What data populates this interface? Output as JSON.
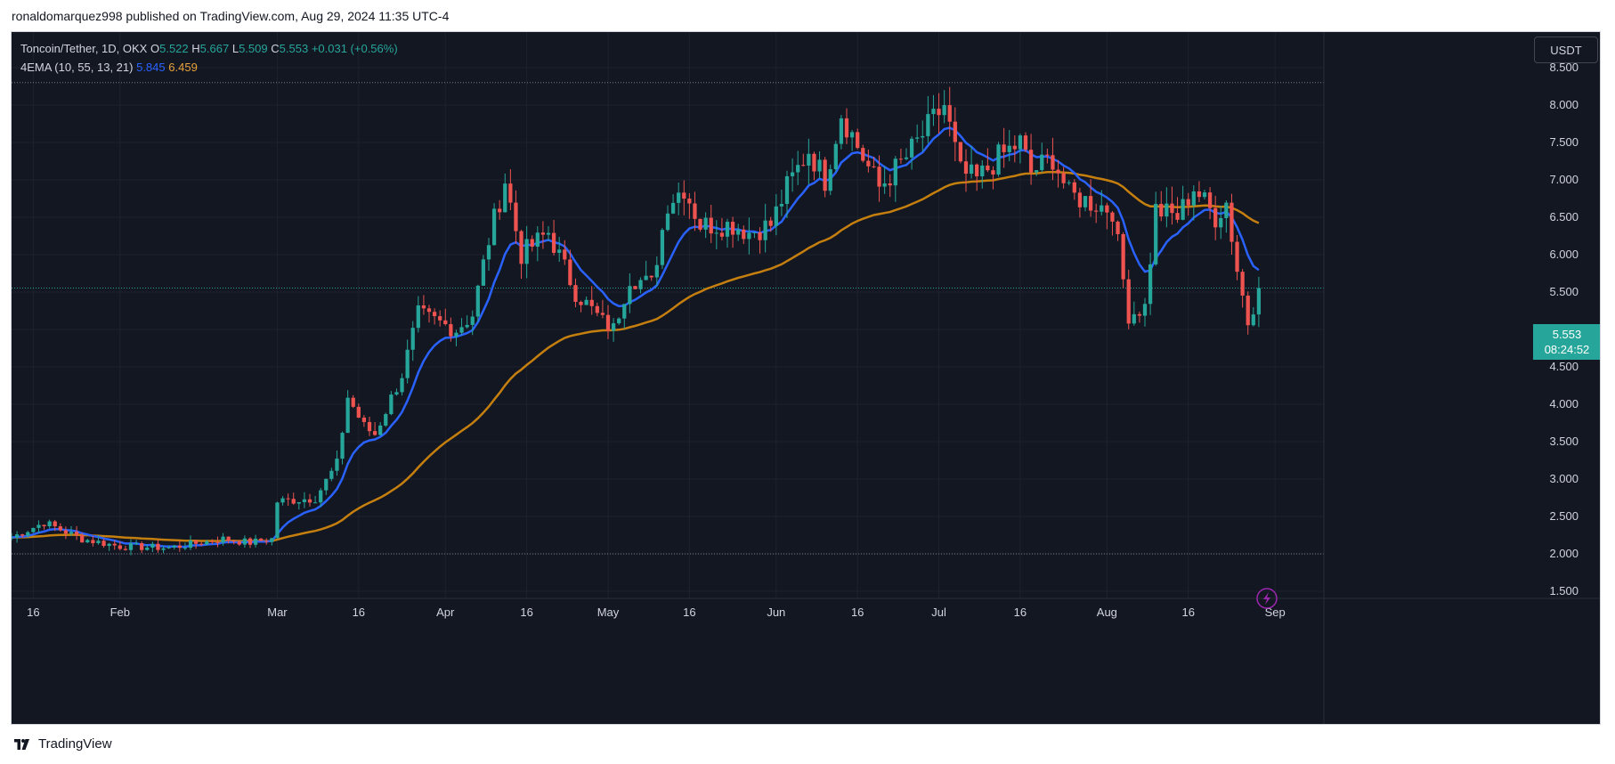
{
  "header": {
    "attribution": "ronaldomarquez998 published on TradingView.com, Aug 29, 2024 11:35 UTC-4"
  },
  "legend": {
    "symbol": "Toncoin/Tether, 1D, OKX",
    "o_label": "O",
    "o": "5.522",
    "h_label": "H",
    "h": "5.667",
    "l_label": "L",
    "l": "5.509",
    "c_label": "C",
    "c": "5.553",
    "change": "+0.031 (+0.56%)",
    "indicator": "4EMA (10, 55, 13, 21)",
    "ema_fast": "5.845",
    "ema_slow": "6.459"
  },
  "price_axis": {
    "unit": "USDT",
    "ticks": [
      "8.500",
      "8.000",
      "7.500",
      "7.000",
      "6.500",
      "6.000",
      "5.500",
      "5.000",
      "4.500",
      "4.000",
      "3.500",
      "3.000",
      "2.500",
      "2.000",
      "1.500"
    ]
  },
  "price_tag": {
    "price": "5.553",
    "countdown": "08:24:52"
  },
  "time_axis": {
    "ticks": [
      "16",
      "Feb",
      "Mar",
      "16",
      "Apr",
      "16",
      "May",
      "16",
      "Jun",
      "16",
      "Jul",
      "16",
      "Aug",
      "16",
      "Sep"
    ]
  },
  "footer": {
    "brand": "TradingView"
  },
  "colors": {
    "bg": "#131722",
    "up": "#26a69a",
    "down": "#ef5350",
    "ema_fast": "#2962ff",
    "ema_slow": "#c57f0f"
  },
  "chart_data": {
    "type": "candlestick",
    "ylim": [
      1.3,
      8.9
    ],
    "ytick_values": [
      8.5,
      8.0,
      7.5,
      7.0,
      6.5,
      6.0,
      5.5,
      5.0,
      4.5,
      4.0,
      3.5,
      3.0,
      2.5,
      2.0,
      1.5
    ],
    "xtick_dates": [
      "2024-01-16",
      "2024-02-01",
      "2024-03-01",
      "2024-03-16",
      "2024-04-01",
      "2024-04-16",
      "2024-05-01",
      "2024-05-16",
      "2024-06-01",
      "2024-06-16",
      "2024-07-01",
      "2024-07-16",
      "2024-08-01",
      "2024-08-16",
      "2024-09-01"
    ],
    "x_start": "2024-01-12",
    "x_end": "2024-09-10",
    "last_date": "2024-08-29",
    "last_close": 5.553,
    "close_anchors": [
      [
        "2024-01-12",
        2.22
      ],
      [
        "2024-01-18",
        2.42
      ],
      [
        "2024-01-25",
        2.2
      ],
      [
        "2024-02-01",
        2.1
      ],
      [
        "2024-02-10",
        2.08
      ],
      [
        "2024-02-20",
        2.2
      ],
      [
        "2024-02-25",
        2.15
      ],
      [
        "2024-02-29",
        2.2
      ],
      [
        "2024-03-01",
        2.7
      ],
      [
        "2024-03-08",
        2.75
      ],
      [
        "2024-03-12",
        3.2
      ],
      [
        "2024-03-14",
        4.1
      ],
      [
        "2024-03-17",
        3.7
      ],
      [
        "2024-03-19",
        3.6
      ],
      [
        "2024-03-24",
        4.4
      ],
      [
        "2024-03-27",
        5.2
      ],
      [
        "2024-04-03",
        5.0
      ],
      [
        "2024-04-06",
        5.2
      ],
      [
        "2024-04-09",
        6.2
      ],
      [
        "2024-04-12",
        7.0
      ],
      [
        "2024-04-15",
        6.0
      ],
      [
        "2024-04-20",
        6.3
      ],
      [
        "2024-04-25",
        5.5
      ],
      [
        "2024-04-30",
        5.1
      ],
      [
        "2024-05-02",
        5.0
      ],
      [
        "2024-05-05",
        5.7
      ],
      [
        "2024-05-09",
        5.6
      ],
      [
        "2024-05-12",
        6.7
      ],
      [
        "2024-05-15",
        6.9
      ],
      [
        "2024-05-18",
        6.4
      ],
      [
        "2024-05-24",
        6.4
      ],
      [
        "2024-05-27",
        6.3
      ],
      [
        "2024-05-31",
        6.4
      ],
      [
        "2024-06-03",
        6.9
      ],
      [
        "2024-06-07",
        7.4
      ],
      [
        "2024-06-10",
        7.0
      ],
      [
        "2024-06-13",
        7.9
      ],
      [
        "2024-06-17",
        7.3
      ],
      [
        "2024-06-20",
        6.9
      ],
      [
        "2024-06-25",
        7.3
      ],
      [
        "2024-06-28",
        7.6
      ],
      [
        "2024-07-02",
        8.0
      ],
      [
        "2024-07-05",
        7.1
      ],
      [
        "2024-07-08",
        7.0
      ],
      [
        "2024-07-12",
        7.3
      ],
      [
        "2024-07-16",
        7.5
      ],
      [
        "2024-07-18",
        7.1
      ],
      [
        "2024-07-22",
        7.3
      ],
      [
        "2024-07-25",
        6.8
      ],
      [
        "2024-07-29",
        6.7
      ],
      [
        "2024-08-02",
        6.6
      ],
      [
        "2024-08-05",
        5.2
      ],
      [
        "2024-08-08",
        5.3
      ],
      [
        "2024-08-10",
        6.6
      ],
      [
        "2024-08-14",
        6.5
      ],
      [
        "2024-08-17",
        6.9
      ],
      [
        "2024-08-21",
        6.5
      ],
      [
        "2024-08-23",
        6.7
      ],
      [
        "2024-08-25",
        5.8
      ],
      [
        "2024-08-27",
        5.1
      ],
      [
        "2024-08-29",
        5.553
      ]
    ],
    "series": [
      {
        "name": "EMA 10",
        "last": 5.845
      },
      {
        "name": "EMA 55",
        "last": 6.459
      }
    ],
    "hlines": [
      8.3,
      5.553,
      2.0
    ],
    "current_high": 5.667
  }
}
